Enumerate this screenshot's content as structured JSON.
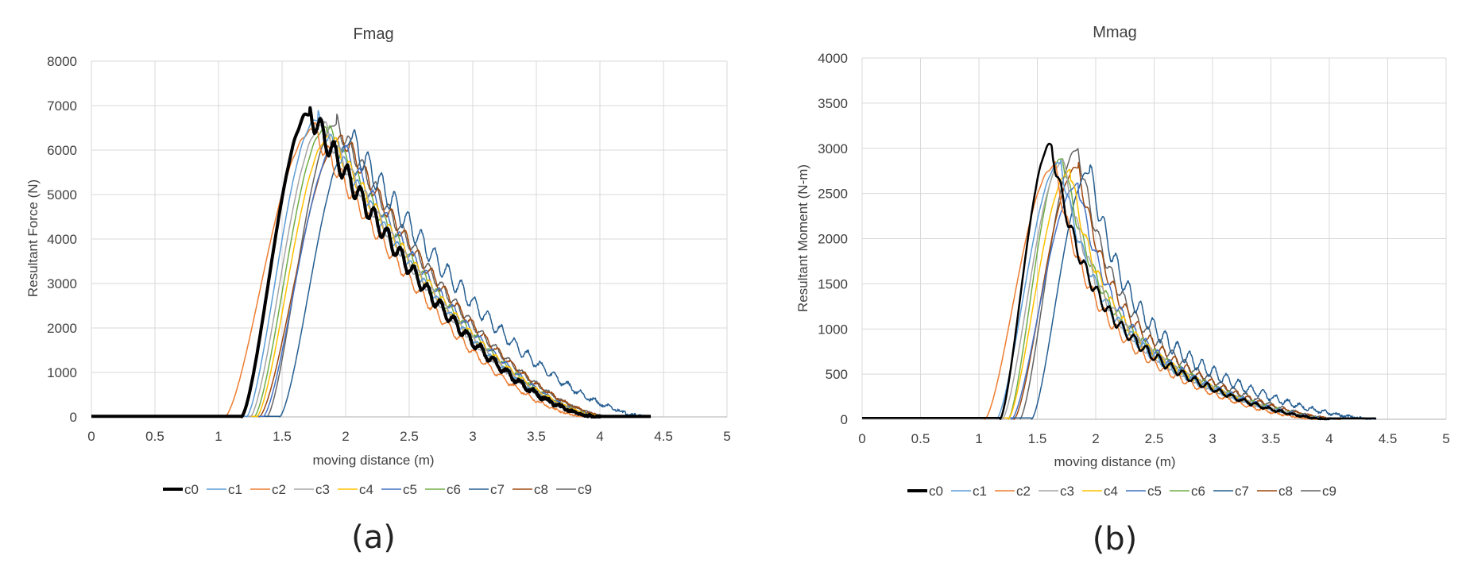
{
  "panels": [
    {
      "label": "(a)"
    },
    {
      "label": "(b)"
    }
  ],
  "series_colors": {
    "c0": "#000000",
    "c1": "#5b9bd5",
    "c2": "#ed7d31",
    "c3": "#a5a5a5",
    "c4": "#ffc000",
    "c5": "#4472c4",
    "c6": "#70ad47",
    "c7": "#255e91",
    "c8": "#9e480e",
    "c9": "#636363"
  },
  "chart_data": [
    {
      "type": "line",
      "title": "Fmag",
      "xlabel": "moving distance (m)",
      "ylabel": "Resultant Force (N)",
      "xlim": [
        0,
        5
      ],
      "ylim": [
        0,
        8000
      ],
      "xticks": [
        "0",
        "0.5",
        "1",
        "1.5",
        "2",
        "2.5",
        "3",
        "3.5",
        "4",
        "4.5",
        "5"
      ],
      "yticks": [
        "0",
        "1000",
        "2000",
        "3000",
        "4000",
        "5000",
        "6000",
        "7000",
        "8000"
      ],
      "grid": true,
      "legend": "bottom",
      "series": [
        {
          "name": "c0",
          "key": "c0",
          "onset": 1.18,
          "peak_x": 1.72,
          "peak": 6850,
          "end": 4.0,
          "osc": 280,
          "width": 4
        },
        {
          "name": "c1",
          "key": "c1",
          "onset": 1.22,
          "peak_x": 1.78,
          "peak": 6700,
          "end": 4.0,
          "osc": 200,
          "width": 1.5
        },
        {
          "name": "c2",
          "key": "c2",
          "onset": 1.05,
          "peak_x": 1.75,
          "peak": 6450,
          "end": 3.9,
          "osc": 220,
          "width": 1.5
        },
        {
          "name": "c3",
          "key": "c3",
          "onset": 1.25,
          "peak_x": 1.82,
          "peak": 6550,
          "end": 4.0,
          "osc": 200,
          "width": 1.5
        },
        {
          "name": "c4",
          "key": "c4",
          "onset": 1.3,
          "peak_x": 1.88,
          "peak": 6300,
          "end": 4.05,
          "osc": 200,
          "width": 1.5
        },
        {
          "name": "c5",
          "key": "c5",
          "onset": 1.35,
          "peak_x": 1.95,
          "peak": 6200,
          "end": 4.05,
          "osc": 200,
          "width": 1.5
        },
        {
          "name": "c6",
          "key": "c6",
          "onset": 1.28,
          "peak_x": 1.85,
          "peak": 6500,
          "end": 4.05,
          "osc": 200,
          "width": 1.5
        },
        {
          "name": "c7",
          "key": "c7",
          "onset": 1.48,
          "peak_x": 2.05,
          "peak": 6200,
          "end": 4.4,
          "osc": 330,
          "width": 1.5
        },
        {
          "name": "c8",
          "key": "c8",
          "onset": 1.32,
          "peak_x": 1.98,
          "peak": 6300,
          "end": 4.1,
          "osc": 220,
          "width": 1.5
        },
        {
          "name": "c9",
          "key": "c9",
          "onset": 1.38,
          "peak_x": 1.93,
          "peak": 6600,
          "end": 4.1,
          "osc": 220,
          "width": 1.5
        }
      ]
    },
    {
      "type": "line",
      "title": "Mmag",
      "xlabel": "moving distance (m)",
      "ylabel": "Resultant Moment (N-m)",
      "xlim": [
        0,
        5
      ],
      "ylim": [
        0,
        4000
      ],
      "xticks": [
        "0",
        "0.5",
        "1",
        "1.5",
        "2",
        "2.5",
        "3",
        "3.5",
        "4",
        "4.5",
        "5"
      ],
      "yticks": [
        "0",
        "500",
        "1000",
        "1500",
        "2000",
        "2500",
        "3000",
        "3500",
        "4000"
      ],
      "grid": true,
      "legend": "bottom",
      "series": [
        {
          "name": "c0",
          "key": "c0",
          "onset": 1.18,
          "peak_x": 1.62,
          "peak": 3050,
          "end": 4.0,
          "osc": 90,
          "width": 2.5
        },
        {
          "name": "c1",
          "key": "c1",
          "onset": 1.15,
          "peak_x": 1.7,
          "peak": 2850,
          "end": 4.0,
          "osc": 80,
          "width": 1.5
        },
        {
          "name": "c2",
          "key": "c2",
          "onset": 1.05,
          "peak_x": 1.65,
          "peak": 2800,
          "end": 3.9,
          "osc": 80,
          "width": 1.5
        },
        {
          "name": "c3",
          "key": "c3",
          "onset": 1.2,
          "peak_x": 1.72,
          "peak": 2850,
          "end": 4.0,
          "osc": 80,
          "width": 1.5
        },
        {
          "name": "c4",
          "key": "c4",
          "onset": 1.25,
          "peak_x": 1.78,
          "peak": 2750,
          "end": 4.0,
          "osc": 80,
          "width": 1.5
        },
        {
          "name": "c5",
          "key": "c5",
          "onset": 1.28,
          "peak_x": 1.85,
          "peak": 2600,
          "end": 4.05,
          "osc": 80,
          "width": 1.5
        },
        {
          "name": "c6",
          "key": "c6",
          "onset": 1.25,
          "peak_x": 1.72,
          "peak": 2900,
          "end": 4.05,
          "osc": 80,
          "width": 1.5
        },
        {
          "name": "c7",
          "key": "c7",
          "onset": 1.45,
          "peak_x": 1.95,
          "peak": 2750,
          "end": 4.4,
          "osc": 130,
          "width": 1.5
        },
        {
          "name": "c8",
          "key": "c8",
          "onset": 1.3,
          "peak_x": 1.85,
          "peak": 2800,
          "end": 4.1,
          "osc": 90,
          "width": 1.5
        },
        {
          "name": "c9",
          "key": "c9",
          "onset": 1.35,
          "peak_x": 1.85,
          "peak": 3000,
          "end": 4.1,
          "osc": 90,
          "width": 1.5
        }
      ]
    }
  ]
}
